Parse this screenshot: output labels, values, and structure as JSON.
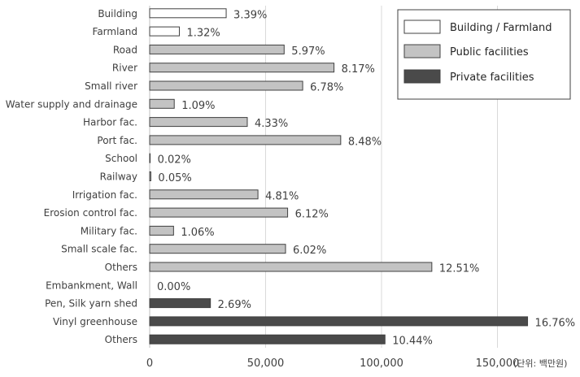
{
  "chart_data": {
    "type": "bar",
    "orientation": "horizontal",
    "categories": [
      "Building",
      "Farmland",
      "Road",
      "River",
      "Small river",
      "Water supply and drainage",
      "Harbor fac.",
      "Port fac.",
      "School",
      "Railway",
      "Irrigation fac.",
      "Erosion control fac.",
      "Military fac.",
      "Small scale fac.",
      "Others",
      "Embankment, Wall",
      "Pen, Silk yarn shed",
      "Vinyl greenhouse",
      "Others"
    ],
    "values": [
      33000,
      12800,
      58000,
      79500,
      66000,
      10600,
      42100,
      82400,
      200,
      500,
      46700,
      59500,
      10300,
      58600,
      121700,
      0,
      26200,
      163000,
      101500
    ],
    "percent_labels": [
      "3.39%",
      "1.32%",
      "5.97%",
      "8.17%",
      "6.78%",
      "1.09%",
      "4.33%",
      "8.48%",
      "0.02%",
      "0.05%",
      "4.81%",
      "6.12%",
      "1.06%",
      "6.02%",
      "12.51%",
      "0.00%",
      "2.69%",
      "16.76%",
      "10.44%"
    ],
    "groups": [
      0,
      0,
      1,
      1,
      1,
      1,
      1,
      1,
      1,
      1,
      1,
      1,
      1,
      1,
      1,
      2,
      2,
      2,
      2
    ],
    "legend": [
      "Building / Farmland",
      "Public facilities",
      "Private facilities"
    ],
    "group_colors": [
      "#ffffff",
      "#c3c3c3",
      "#4a4a4a"
    ],
    "xticks": [
      "0",
      "50,000",
      "100,000",
      "150,000"
    ],
    "xlim": [
      0,
      160000
    ],
    "unit_note": "(단위: 백만원)",
    "grid": true,
    "legend_position": "top-right"
  }
}
